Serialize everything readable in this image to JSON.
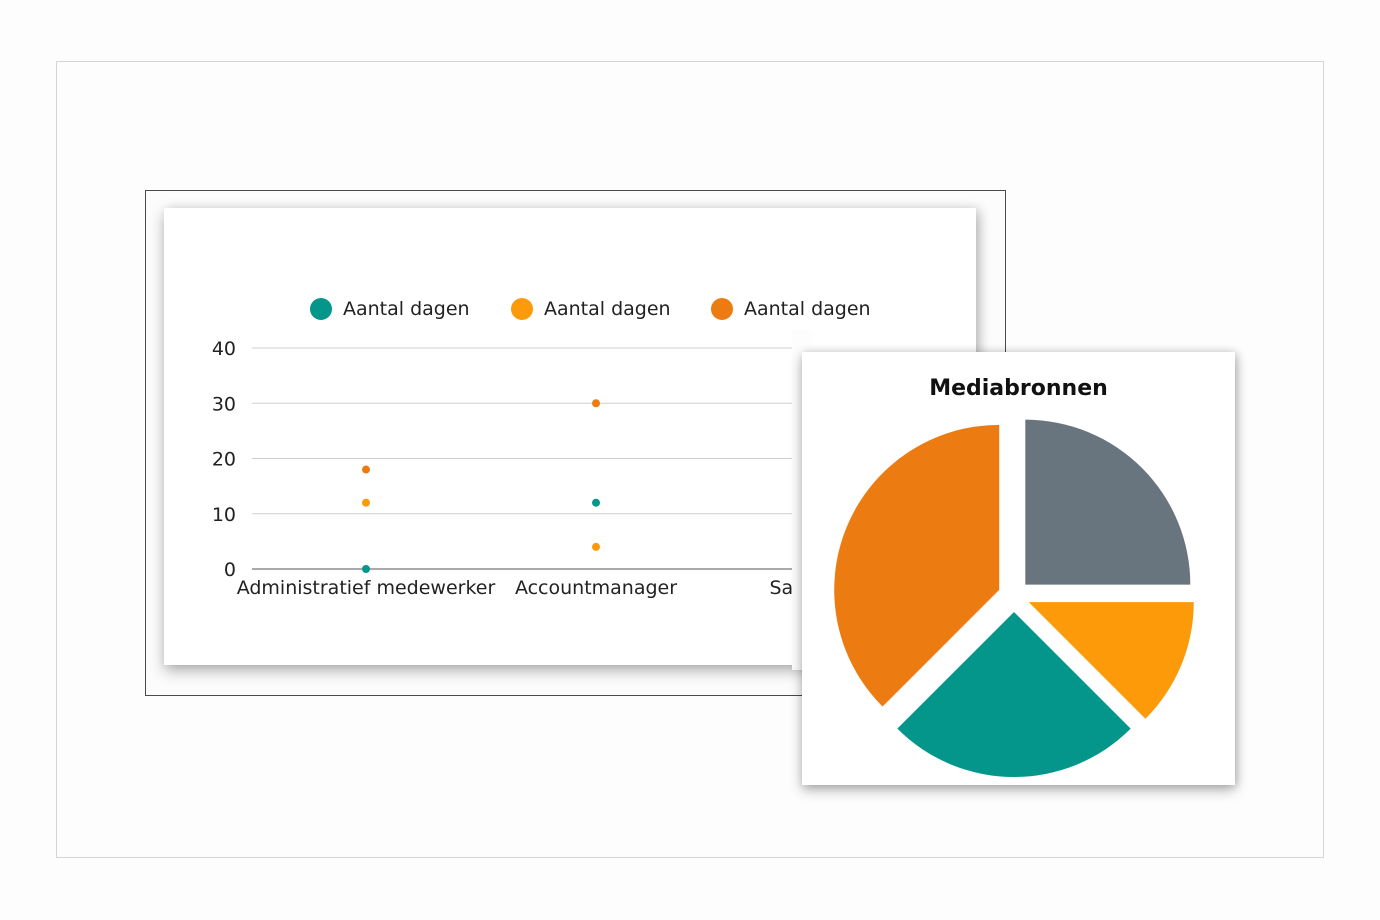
{
  "colors": {
    "teal": "#04968a",
    "amber": "#fd9a0a",
    "orange": "#ec7c12",
    "slate": "#68757e"
  },
  "chart_data": [
    {
      "type": "scatter",
      "categories": [
        "Administratief medewerker",
        "Accountmanager",
        "Sal"
      ],
      "series": [
        {
          "name": "Aantal dagen",
          "color": "#04968a",
          "values": [
            0,
            12,
            null
          ]
        },
        {
          "name": "Aantal dagen",
          "color": "#fd9a0a",
          "values": [
            12,
            4,
            null
          ]
        },
        {
          "name": "Aantal dagen",
          "color": "#ec7c12",
          "values": [
            18,
            30,
            null
          ]
        }
      ],
      "yticks": [
        "0",
        "10",
        "20",
        "30",
        "40"
      ],
      "ylim": [
        0,
        40
      ],
      "grid": true,
      "legend_position": "top"
    },
    {
      "type": "pie",
      "title": "Mediabronnen",
      "slices": [
        {
          "value": 25,
          "color": "#68757e"
        },
        {
          "value": 12.5,
          "color": "#fd9a0a"
        },
        {
          "value": 25,
          "color": "#04968a"
        },
        {
          "value": 37.5,
          "color": "#ec7c12"
        }
      ],
      "exploded": true,
      "legend": false
    }
  ]
}
